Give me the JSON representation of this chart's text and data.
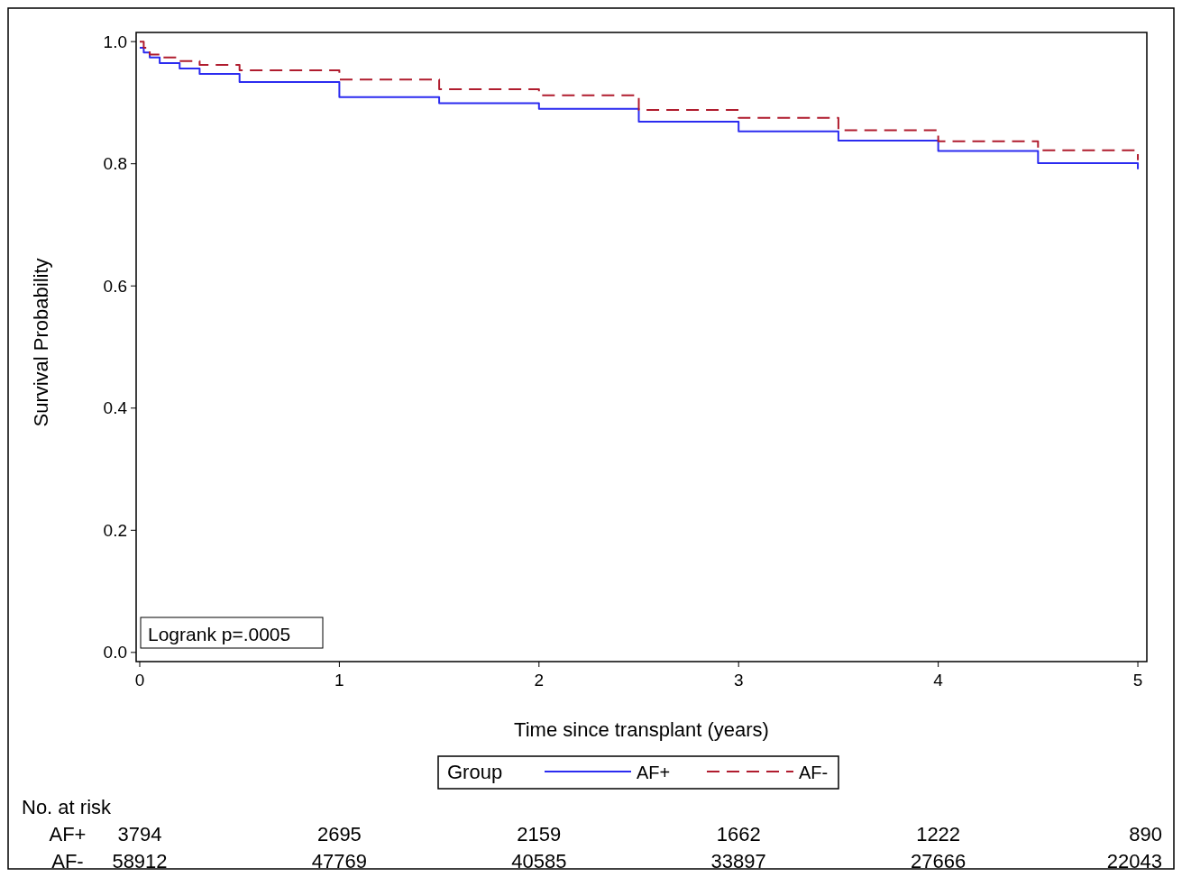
{
  "chart_data": {
    "type": "step",
    "xlabel": "Time since transplant (years)",
    "ylabel": "Survival Probability",
    "legend_title": "Group",
    "legend": "bottom",
    "xlim": [
      -0.018,
      5.045
    ],
    "xticks": [
      0,
      1,
      2,
      3,
      4,
      5
    ],
    "ylim": [
      -0.015,
      1.015
    ],
    "yticks": [
      {
        "value": 0,
        "label": "0.0"
      },
      {
        "value": 0.2,
        "label": "0.2"
      },
      {
        "value": 0.4,
        "label": "0.4"
      },
      {
        "value": 0.6,
        "label": "0.6"
      },
      {
        "value": 0.8,
        "label": "0.8"
      },
      {
        "value": 1,
        "label": "1.0"
      }
    ],
    "x": [
      0,
      0.02,
      0.05,
      0.1,
      0.2,
      0.3,
      0.5,
      1,
      1.5,
      2,
      2.5,
      3,
      3.5,
      4,
      4.5,
      5
    ],
    "series": [
      {
        "name": "AF+",
        "color": "#2b2bf0",
        "line_style": "solid",
        "values": [
          0.99,
          0.982,
          0.974,
          0.965,
          0.956,
          0.947,
          0.934,
          0.909,
          0.899,
          0.89,
          0.869,
          0.853,
          0.838,
          0.821,
          0.801,
          0.791
        ]
      },
      {
        "name": "AF-",
        "color": "#b01c2e",
        "line_style": "dashed",
        "values": [
          1.0,
          0.99,
          0.979,
          0.974,
          0.968,
          0.962,
          0.953,
          0.938,
          0.922,
          0.912,
          0.888,
          0.875,
          0.855,
          0.837,
          0.822,
          0.806
        ]
      }
    ],
    "annotations": [
      "Logrank p=.0005",
      "No. at risk",
      "AF+",
      "3794",
      "2695",
      "2159",
      "1662",
      "1222",
      "890",
      "AF-",
      "58912",
      "47769",
      "40585",
      "33897",
      "27666",
      "22043"
    ]
  }
}
